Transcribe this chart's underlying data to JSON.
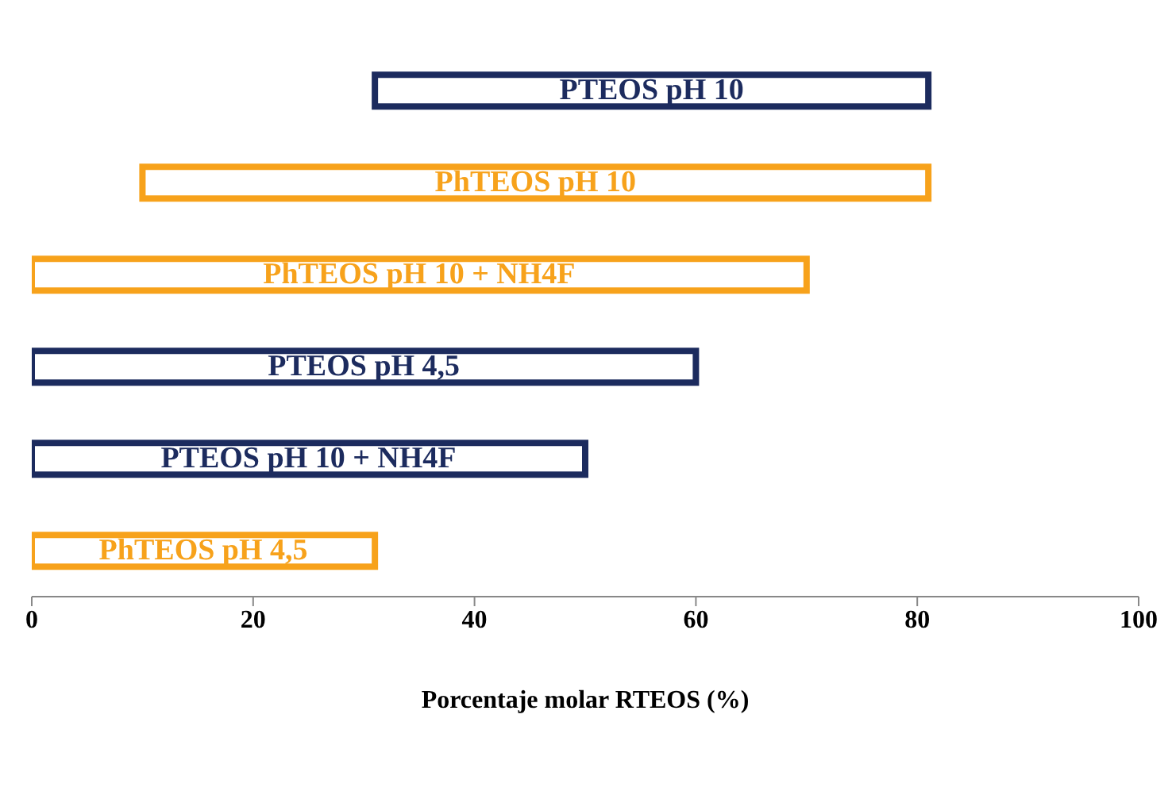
{
  "chart_data": {
    "type": "bar",
    "orientation": "horizontal",
    "xlabel": "Porcentaje molar RTEOS (%)",
    "categories": [
      "PTEOS pH 10",
      "PhTEOS pH 10",
      "PhTEOS pH 10 + NH4F",
      "PTEOS pH 4,5",
      "PTEOS pH 10 + NH4F",
      "PhTEOS pH 4,5"
    ],
    "base": [
      31,
      10,
      0,
      0,
      0,
      0
    ],
    "values": [
      50,
      71,
      70,
      60,
      50,
      31
    ],
    "colors": [
      "#1c2b5e",
      "#f7a21b",
      "#f7a21b",
      "#1c2b5e",
      "#1c2b5e",
      "#f7a21b"
    ],
    "xlim": [
      0,
      100
    ],
    "xticks": [
      0,
      20,
      40,
      60,
      80,
      100
    ],
    "tick_labels": "x",
    "grid": false,
    "legend": false
  }
}
